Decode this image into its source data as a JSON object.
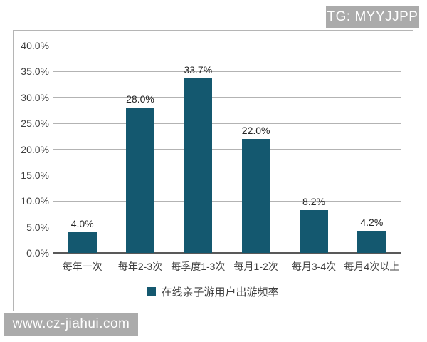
{
  "watermarks": {
    "top_right": "TG: MYYJJPP",
    "bottom_left": "www.cz-jiahui.com"
  },
  "colors": {
    "bar": "#14586f",
    "badge_bg": "#ababab",
    "gridline": "#b3b3b3",
    "axis_line": "#595959",
    "frame_border": "#b5b5b5"
  },
  "chart_data": {
    "type": "bar",
    "title": "",
    "legend": "在线亲子游用户出游频率",
    "categories": [
      "每年一次",
      "每年2-3次",
      "每季度1-3次",
      "每月1-2次",
      "每月3-4次",
      "每月4次以上"
    ],
    "values": [
      4.0,
      28.0,
      33.7,
      22.0,
      8.2,
      4.2
    ],
    "value_labels": [
      "4.0%",
      "28.0%",
      "33.7%",
      "22.0%",
      "8.2%",
      "4.2%"
    ],
    "y_ticks": [
      "0.0%",
      "5.0%",
      "10.0%",
      "15.0%",
      "20.0%",
      "25.0%",
      "30.0%",
      "35.0%",
      "40.0%"
    ],
    "ylim": [
      0,
      40
    ],
    "y_step": 5,
    "grid": true,
    "legend_position": "bottom"
  }
}
